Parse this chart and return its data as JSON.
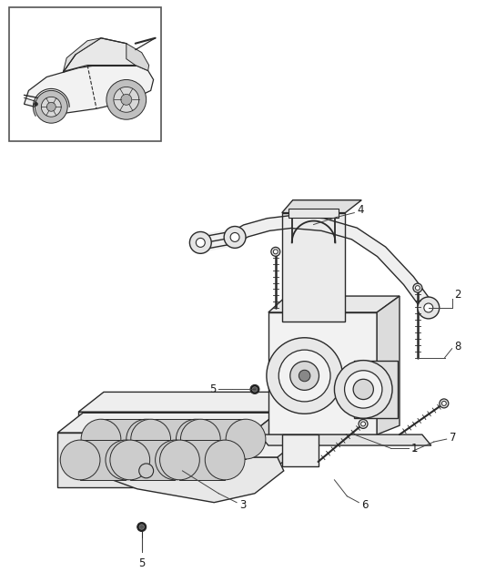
{
  "background_color": "#ffffff",
  "fig_width": 5.45,
  "fig_height": 6.28,
  "dpi": 100,
  "line_color": "#2a2a2a",
  "text_color": "#1a1a1a",
  "label_fontsize": 8.5,
  "fill_light": "#f2f2f2",
  "fill_mid": "#e0e0e0",
  "fill_dark": "#c8c8c8"
}
